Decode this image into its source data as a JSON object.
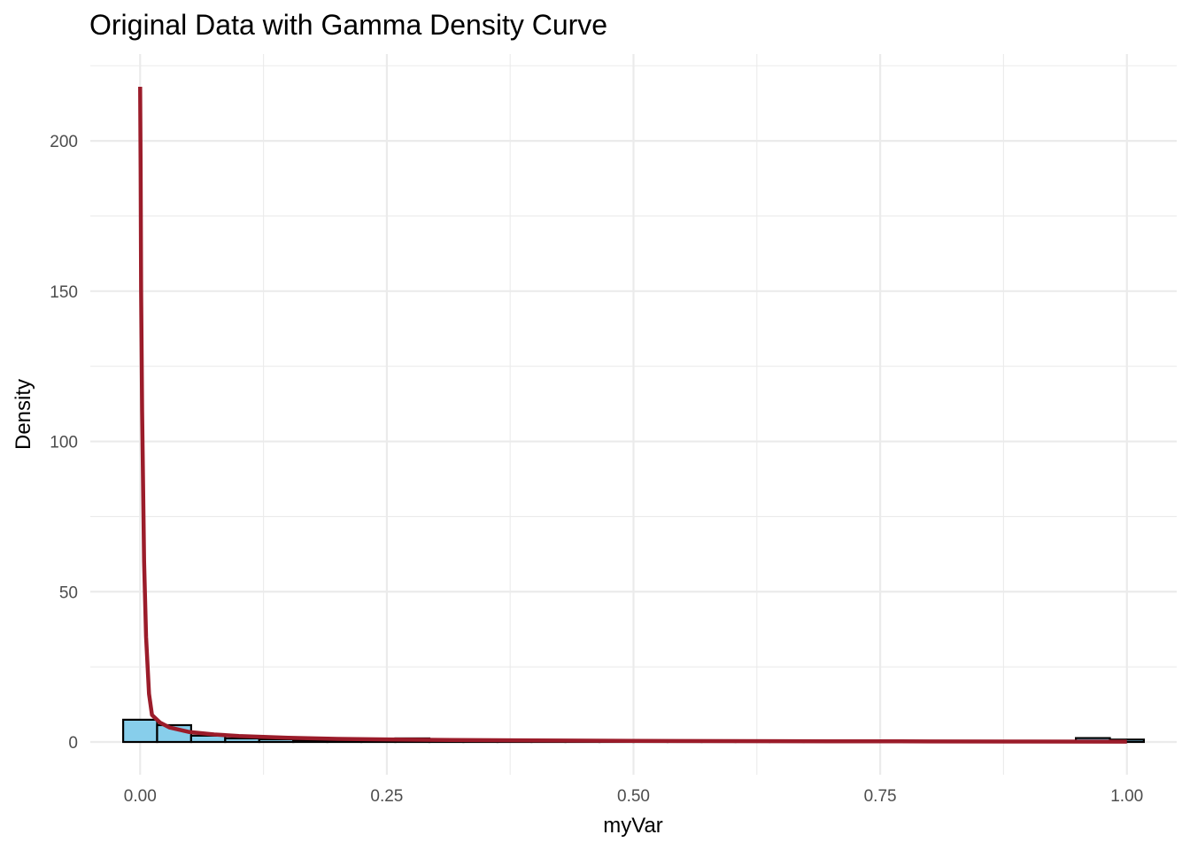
{
  "chart_data": {
    "type": "histogram_with_density",
    "title": "Original Data with Gamma Density Curve",
    "xlabel": "myVar",
    "ylabel": "Density",
    "xlim": [
      -0.0505,
      1.0505
    ],
    "ylim": [
      -10.9,
      228.9
    ],
    "x_ticks": [
      0.0,
      0.25,
      0.5,
      0.75,
      1.0
    ],
    "x_tick_labels": [
      "0.00",
      "0.25",
      "0.50",
      "0.75",
      "1.00"
    ],
    "x_minor_ticks": [
      0.125,
      0.375,
      0.625,
      0.875
    ],
    "y_ticks": [
      0,
      50,
      100,
      150,
      200
    ],
    "y_tick_labels": [
      "0",
      "50",
      "100",
      "150",
      "200"
    ],
    "y_minor_ticks": [
      25,
      75,
      125,
      175,
      225
    ],
    "grid": true,
    "histogram": {
      "fill": "#87ceeb",
      "border": "#000000",
      "bin_width": 0.0345,
      "bins": [
        {
          "x0": -0.0172,
          "x1": 0.0172,
          "density": 7.4
        },
        {
          "x0": 0.0172,
          "x1": 0.0517,
          "density": 5.6
        },
        {
          "x0": 0.0517,
          "x1": 0.0862,
          "density": 2.1
        },
        {
          "x0": 0.0862,
          "x1": 0.1207,
          "density": 1.2
        },
        {
          "x0": 0.1207,
          "x1": 0.1552,
          "density": 0.9
        },
        {
          "x0": 0.1552,
          "x1": 0.1897,
          "density": 0.6
        },
        {
          "x0": 0.1897,
          "x1": 0.2241,
          "density": 0.5
        },
        {
          "x0": 0.2241,
          "x1": 0.2586,
          "density": 0.3
        },
        {
          "x0": 0.2586,
          "x1": 0.2931,
          "density": 1.2
        },
        {
          "x0": 0.2931,
          "x1": 0.3276,
          "density": 0.3
        },
        {
          "x0": 0.3276,
          "x1": 0.3621,
          "density": 0.3
        },
        {
          "x0": 0.3621,
          "x1": 0.3966,
          "density": 0.3
        },
        {
          "x0": 0.3966,
          "x1": 0.431,
          "density": 0.2
        },
        {
          "x0": 0.431,
          "x1": 0.4655,
          "density": 0.2
        },
        {
          "x0": 0.4655,
          "x1": 0.5,
          "density": 0.2
        },
        {
          "x0": 0.5,
          "x1": 0.5345,
          "density": 0.2
        },
        {
          "x0": 0.5345,
          "x1": 0.569,
          "density": 0.2
        },
        {
          "x0": 0.569,
          "x1": 0.6034,
          "density": 0.2
        },
        {
          "x0": 0.6034,
          "x1": 0.6379,
          "density": 0.2
        },
        {
          "x0": 0.6379,
          "x1": 0.6724,
          "density": 0.2
        },
        {
          "x0": 0.6724,
          "x1": 0.7069,
          "density": 0.3
        },
        {
          "x0": 0.7069,
          "x1": 0.7414,
          "density": 0.2
        },
        {
          "x0": 0.7414,
          "x1": 0.7759,
          "density": 0.2
        },
        {
          "x0": 0.7759,
          "x1": 0.8103,
          "density": 0.3
        },
        {
          "x0": 0.8103,
          "x1": 0.8448,
          "density": 0.2
        },
        {
          "x0": 0.8448,
          "x1": 0.8793,
          "density": 0.2
        },
        {
          "x0": 0.8793,
          "x1": 0.9138,
          "density": 0.2
        },
        {
          "x0": 0.9138,
          "x1": 0.9483,
          "density": 0.2
        },
        {
          "x0": 0.9483,
          "x1": 0.9828,
          "density": 1.3
        },
        {
          "x0": 0.9828,
          "x1": 1.0172,
          "density": 0.8
        }
      ]
    },
    "density_curve": {
      "color": "#9b1c2a",
      "points": [
        {
          "x": 0.0,
          "y": 218.0
        },
        {
          "x": 0.0005,
          "y": 190.0
        },
        {
          "x": 0.001,
          "y": 150.0
        },
        {
          "x": 0.002,
          "y": 110.0
        },
        {
          "x": 0.004,
          "y": 60.0
        },
        {
          "x": 0.006,
          "y": 35.0
        },
        {
          "x": 0.009,
          "y": 16.0
        },
        {
          "x": 0.012,
          "y": 9.0
        },
        {
          "x": 0.02,
          "y": 6.5
        },
        {
          "x": 0.03,
          "y": 4.8
        },
        {
          "x": 0.05,
          "y": 3.3
        },
        {
          "x": 0.075,
          "y": 2.5
        },
        {
          "x": 0.1,
          "y": 2.0
        },
        {
          "x": 0.15,
          "y": 1.4
        },
        {
          "x": 0.2,
          "y": 1.05
        },
        {
          "x": 0.25,
          "y": 0.85
        },
        {
          "x": 0.3,
          "y": 0.7
        },
        {
          "x": 0.4,
          "y": 0.5
        },
        {
          "x": 0.5,
          "y": 0.38
        },
        {
          "x": 0.6,
          "y": 0.3
        },
        {
          "x": 0.7,
          "y": 0.24
        },
        {
          "x": 0.8,
          "y": 0.19
        },
        {
          "x": 0.9,
          "y": 0.15
        },
        {
          "x": 1.0,
          "y": 0.12
        }
      ]
    }
  }
}
